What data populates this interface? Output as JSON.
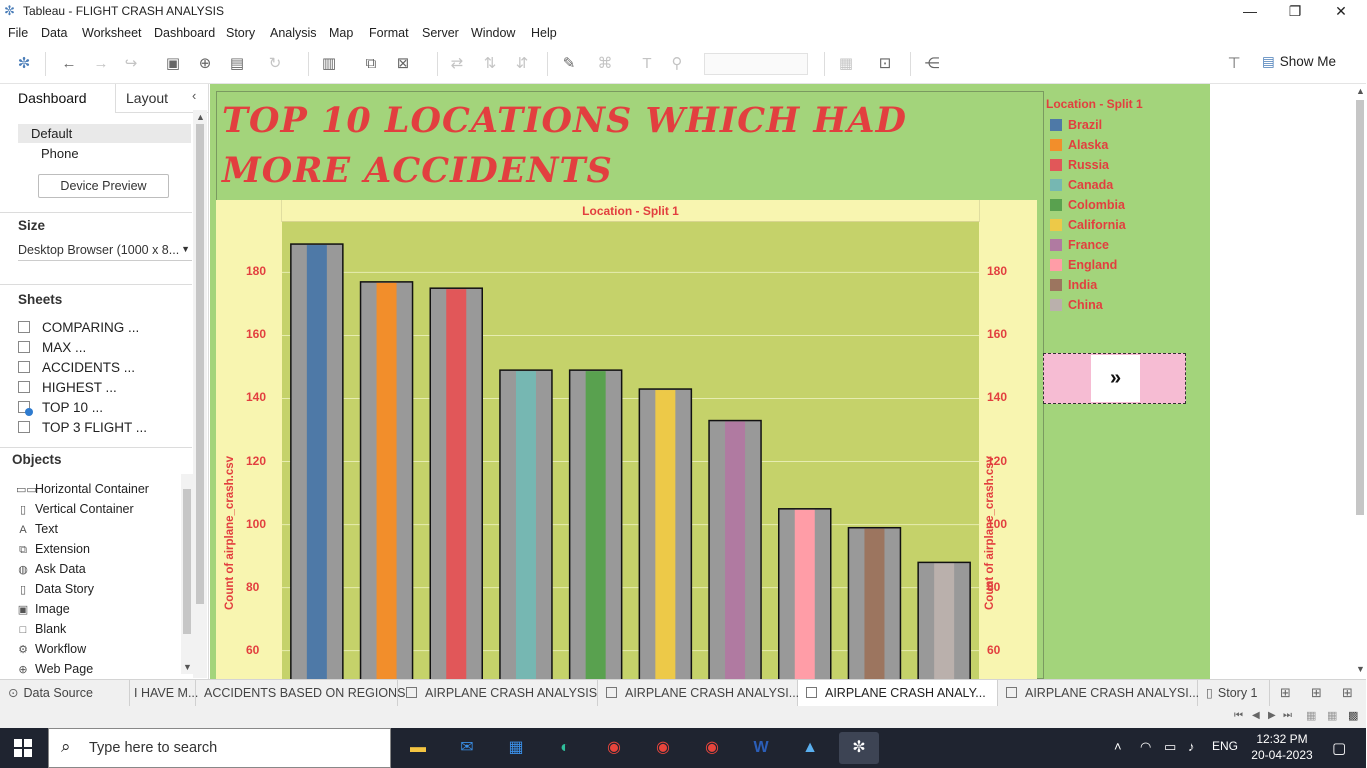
{
  "window": {
    "title": "Tableau - FLIGHT CRASH ANALYSIS"
  },
  "menu": [
    "File",
    "Data",
    "Worksheet",
    "Dashboard",
    "Story",
    "Analysis",
    "Map",
    "Format",
    "Server",
    "Window",
    "Help"
  ],
  "toolbar": {
    "show_me": "Show Me"
  },
  "left_panel": {
    "tabs": [
      "Dashboard",
      "Layout"
    ],
    "devices": [
      "Default",
      "Phone"
    ],
    "device_preview": "Device Preview",
    "size_label": "Size",
    "size_value": "Desktop Browser (1000 x 8...",
    "sheets_label": "Sheets",
    "sheets": [
      "COMPARING ...",
      "MAX ...",
      "ACCIDENTS ...",
      "HIGHEST ...",
      "TOP 10 ...",
      "TOP 3 FLIGHT ..."
    ],
    "objects_label": "Objects",
    "objects": [
      {
        "label": "Horizontal Container",
        "icon": "horizontal-container-icon"
      },
      {
        "label": "Vertical Container",
        "icon": "vertical-container-icon"
      },
      {
        "label": "Text",
        "icon": "text-icon"
      },
      {
        "label": "Extension",
        "icon": "extension-icon"
      },
      {
        "label": "Ask Data",
        "icon": "ask-data-icon"
      },
      {
        "label": "Data Story",
        "icon": "data-story-icon"
      },
      {
        "label": "Image",
        "icon": "image-icon"
      },
      {
        "label": "Blank",
        "icon": "blank-icon"
      },
      {
        "label": "Workflow",
        "icon": "workflow-icon"
      },
      {
        "label": "Web Page",
        "icon": "web-page-icon"
      }
    ]
  },
  "chart_data": {
    "type": "bar",
    "title": "TOP 10 LOCATIONS WHICH HAD MORE ACCIDENTS",
    "header": "Location - Split 1",
    "ylabel": "Count of airplane_crash.csv",
    "categories": [
      "Brazil",
      "Alaska",
      "Russia",
      "Canada",
      "Colombia",
      "California",
      "France",
      "England",
      "India",
      "China"
    ],
    "values": [
      189,
      177,
      175,
      149,
      149,
      143,
      133,
      105,
      99,
      88
    ],
    "colors": [
      "#4e79a7",
      "#f28e2b",
      "#e15759",
      "#76b7b2",
      "#59a14f",
      "#edc948",
      "#b07aa1",
      "#ff9da7",
      "#9c755f",
      "#bab0ac"
    ],
    "yticks": [
      60,
      80,
      100,
      120,
      140,
      160,
      180
    ],
    "ylim": [
      51,
      196
    ],
    "grid": true,
    "legend": {
      "title": "Location - Split 1",
      "position": "right"
    }
  },
  "nav_button": "»",
  "bottom_tabs": [
    {
      "label": "Data Source",
      "type": "datasource"
    },
    {
      "label": "I HAVE M...",
      "type": "sheet"
    },
    {
      "label": "ACCIDENTS BASED ON REGIONS",
      "type": "sheet"
    },
    {
      "label": "AIRPLANE CRASH ANALYSIS",
      "type": "dashboard"
    },
    {
      "label": "AIRPLANE CRASH ANALYSI...",
      "type": "dashboard"
    },
    {
      "label": "AIRPLANE CRASH ANALY...",
      "type": "dashboard",
      "active": true
    },
    {
      "label": "AIRPLANE CRASH ANALYSI...",
      "type": "dashboard"
    },
    {
      "label": "Story 1",
      "type": "story"
    }
  ],
  "taskbar": {
    "search_placeholder": "Type here to search",
    "apps": [
      "file-explorer-icon",
      "mail-icon",
      "store-icon",
      "edge-icon",
      "chrome-icon",
      "chrome-profile-icon",
      "chrome-profile2-icon",
      "word-icon",
      "photos-icon",
      "tableau-icon"
    ],
    "lang": "ENG",
    "time": "12:32 PM",
    "date": "20-04-2023"
  }
}
